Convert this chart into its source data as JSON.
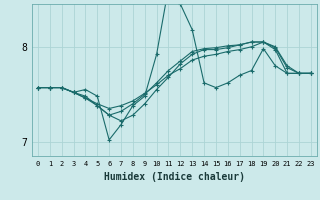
{
  "xlabel": "Humidex (Indice chaleur)",
  "ylabel": "",
  "bg_color": "#cce9ea",
  "grid_color": "#acd4d5",
  "line_color": "#1a6b6b",
  "xlim": [
    -0.5,
    23.5
  ],
  "ylim": [
    6.85,
    8.45
  ],
  "yticks": [
    7,
    8
  ],
  "xticks": [
    0,
    1,
    2,
    3,
    4,
    5,
    6,
    7,
    8,
    9,
    10,
    11,
    12,
    13,
    14,
    15,
    16,
    17,
    18,
    19,
    20,
    21,
    22,
    23
  ],
  "series": [
    [
      7.57,
      7.57,
      7.57,
      7.52,
      7.55,
      7.48,
      7.02,
      7.18,
      7.38,
      7.48,
      7.92,
      8.62,
      8.45,
      8.18,
      7.62,
      7.57,
      7.62,
      7.7,
      7.75,
      7.98,
      7.8,
      7.72,
      7.72,
      7.72
    ],
    [
      7.57,
      7.57,
      7.57,
      7.52,
      7.48,
      7.38,
      7.28,
      7.22,
      7.28,
      7.4,
      7.55,
      7.68,
      7.82,
      7.92,
      7.97,
      7.97,
      7.99,
      8.02,
      8.05,
      8.05,
      7.97,
      7.72,
      7.72,
      7.72
    ],
    [
      7.57,
      7.57,
      7.57,
      7.52,
      7.46,
      7.38,
      7.28,
      7.32,
      7.4,
      7.5,
      7.62,
      7.75,
      7.85,
      7.95,
      7.98,
      7.99,
      8.01,
      8.02,
      8.05,
      8.05,
      7.99,
      7.78,
      7.72,
      7.72
    ],
    [
      7.57,
      7.57,
      7.57,
      7.52,
      7.46,
      7.4,
      7.35,
      7.38,
      7.43,
      7.51,
      7.6,
      7.7,
      7.77,
      7.86,
      7.9,
      7.92,
      7.95,
      7.97,
      8.0,
      8.05,
      8.0,
      7.8,
      7.72,
      7.72
    ]
  ]
}
